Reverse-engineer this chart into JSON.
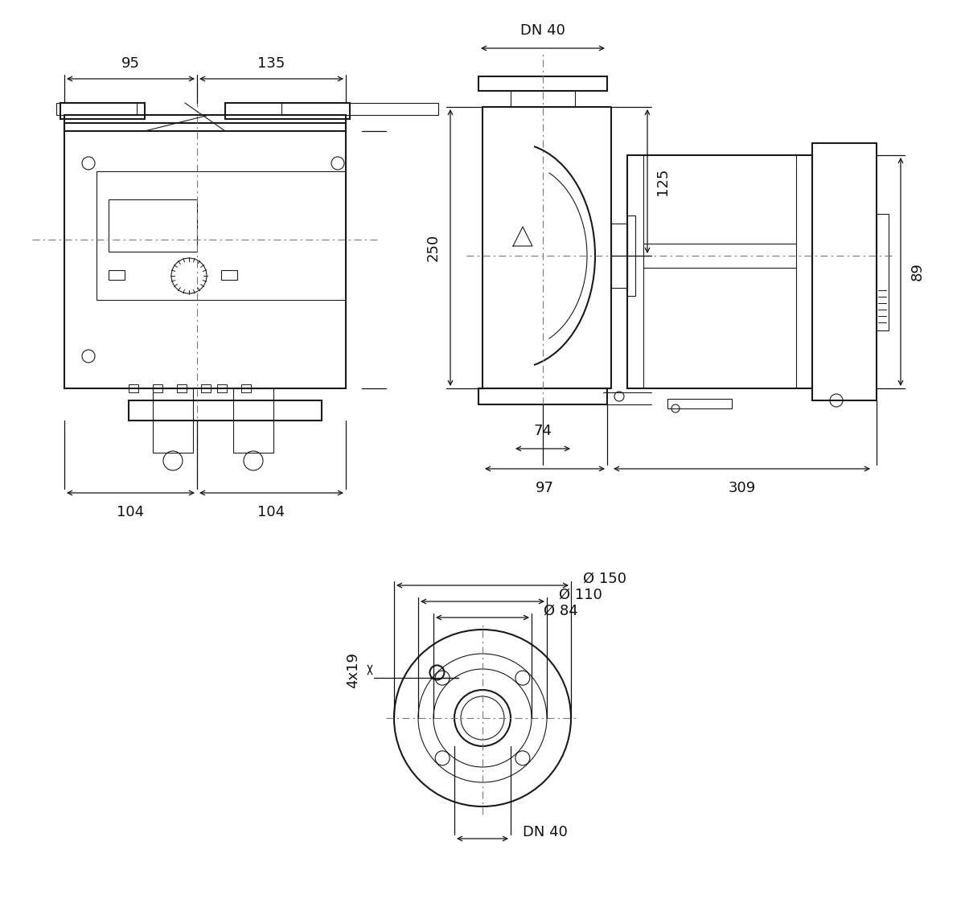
{
  "bg_color": "#ffffff",
  "line_color": "#1a1a1a",
  "dash_color": "#444444",
  "dim_color": "#111111",
  "font_size_dim": 13,
  "font_size_label": 13,
  "annotations": {
    "top_left": {
      "dim_95": "95",
      "dim_135": "135",
      "dim_104_left": "104",
      "dim_104_right": "104",
      "dim_250": "250",
      "dim_125": "125"
    },
    "top_right": {
      "dim_dn40": "DN 40",
      "dim_74": "74",
      "dim_97": "97",
      "dim_309": "309",
      "dim_89": "89",
      "dim_250": "250",
      "dim_125": "125"
    },
    "bottom": {
      "dim_phi150": "Ø 150",
      "dim_phi110": "Ø 110",
      "dim_phi84": "Ø 84",
      "dim_4x19": "4x19",
      "dim_dn40": "DN 40"
    }
  }
}
